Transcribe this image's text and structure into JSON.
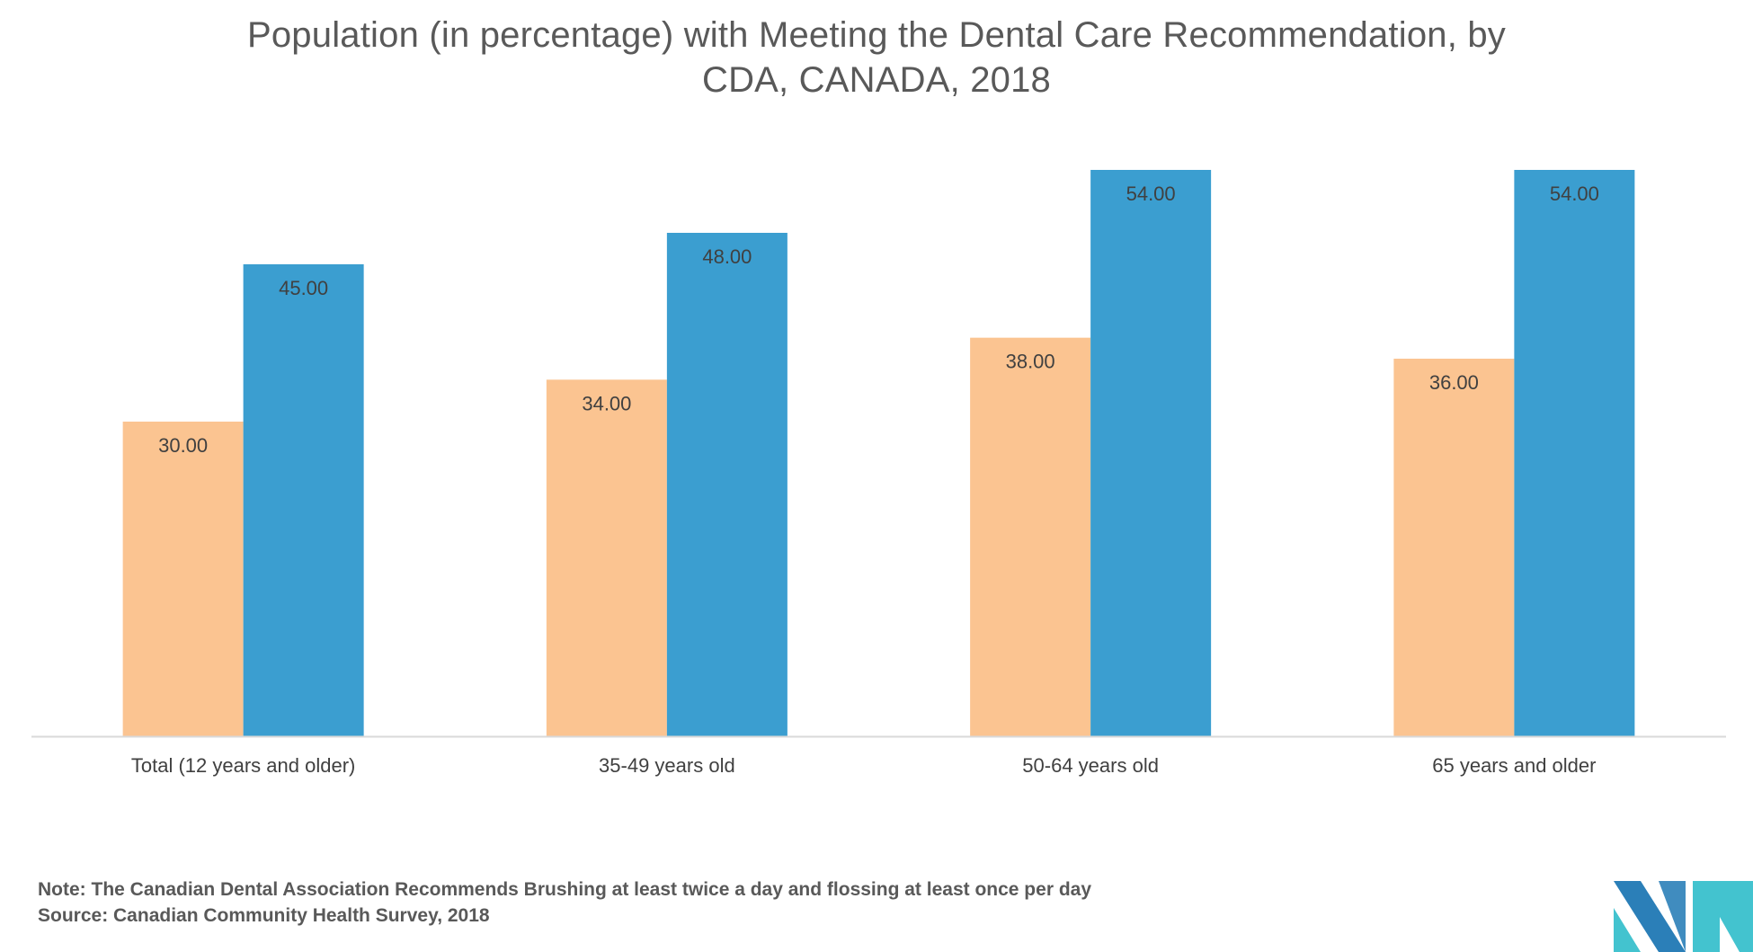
{
  "chart_data": {
    "type": "bar",
    "title_lines": [
      "Population (in percentage) with Meeting the Dental Care Recommendation, by",
      "CDA, CANADA, 2018"
    ],
    "categories": [
      "Total (12 years and older)",
      "35-49 years old",
      "50-64 years old",
      "65 years and older"
    ],
    "series": [
      {
        "values": [
          30.0,
          34.0,
          38.0,
          36.0
        ],
        "labels": [
          "30.00",
          "34.00",
          "38.00",
          "36.00"
        ],
        "color": "#FBC491"
      },
      {
        "values": [
          45.0,
          48.0,
          54.0,
          54.0
        ],
        "labels": [
          "45.00",
          "48.00",
          "54.00",
          "54.00"
        ],
        "color": "#3B9ED0"
      }
    ],
    "xlabel": "",
    "ylabel": "",
    "ylim": [
      0,
      54
    ],
    "grid": false,
    "legend": "none",
    "value_labels": "inside-top"
  },
  "footer": {
    "note": "Note: The Canadian Dental Association Recommends Brushing at least twice a day and flossing at least once per day",
    "source": "Source: Canadian Community Health Survey, 2018"
  },
  "colors": {
    "axis_line": "#D9D9D9",
    "logo_dark": "#2B7FB8",
    "logo_light": "#43C3CF"
  },
  "logo": {
    "icon": "mordor-intelligence-logo-icon"
  }
}
